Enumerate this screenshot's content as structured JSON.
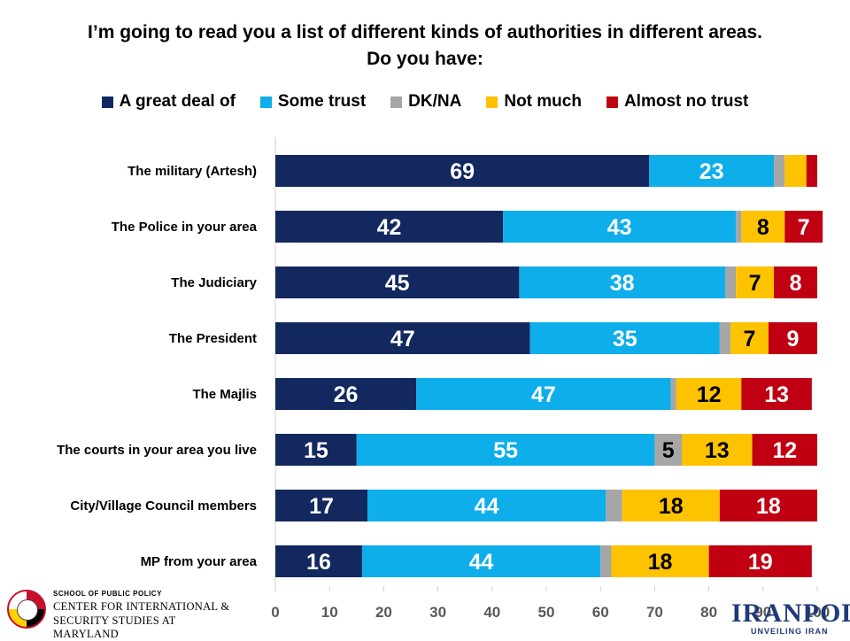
{
  "title_line1": "I’m going to read you a list of different kinds of authorities in different areas.",
  "title_line2": "Do you have:",
  "colors": {
    "great": "#12285f",
    "some": "#0eaeea",
    "dk": "#a6a6a6",
    "notmuch": "#fec300",
    "almostno": "#c00012"
  },
  "chart_data": {
    "type": "bar",
    "orientation": "horizontal",
    "stacked": true,
    "categories": [
      "The military (Artesh)",
      "The Police in your area",
      "The Judiciary",
      "The President",
      "The Majlis",
      "The courts in your area you live",
      "City/Village Council members",
      "MP from your area"
    ],
    "series": [
      {
        "name": "A great deal of",
        "key": "great",
        "values": [
          69,
          42,
          45,
          47,
          26,
          15,
          17,
          16
        ],
        "labels": [
          "69",
          "42",
          "45",
          "47",
          "26",
          "15",
          "17",
          "16"
        ]
      },
      {
        "name": "Some trust",
        "key": "some",
        "values": [
          23,
          43,
          38,
          35,
          47,
          55,
          44,
          44
        ],
        "labels": [
          "23",
          "43",
          "38",
          "35",
          "47",
          "55",
          "44",
          "44"
        ]
      },
      {
        "name": "DK/NA",
        "key": "dk",
        "values": [
          2,
          1,
          2,
          2,
          1,
          5,
          3,
          2
        ],
        "labels": [
          "",
          "",
          "",
          "",
          "",
          "5",
          "",
          ""
        ]
      },
      {
        "name": "Not much",
        "key": "notmuch",
        "values": [
          4,
          8,
          7,
          7,
          12,
          13,
          18,
          18
        ],
        "labels": [
          "",
          "8",
          "7",
          "7",
          "12",
          "13",
          "18",
          "18"
        ]
      },
      {
        "name": "Almost no trust",
        "key": "almostno",
        "values": [
          2,
          7,
          8,
          9,
          13,
          12,
          18,
          19
        ],
        "labels": [
          "",
          "7",
          "8",
          "9",
          "13",
          "12",
          "18",
          "19"
        ]
      }
    ],
    "xlim": [
      0,
      100
    ],
    "xticks": [
      "0",
      "10",
      "20",
      "30",
      "40",
      "50",
      "60",
      "70",
      "80",
      "90",
      "100"
    ],
    "legend_position": "top"
  },
  "logos": {
    "school": "SCHOOL OF PUBLIC POLICY",
    "center_line1": "CENTER FOR INTERNATIONAL &",
    "center_line2": "SECURITY STUDIES AT MARYLAND",
    "iranpoll": "IRANPOLL",
    "iranpoll_sub": "UNVEILING IRAN"
  }
}
